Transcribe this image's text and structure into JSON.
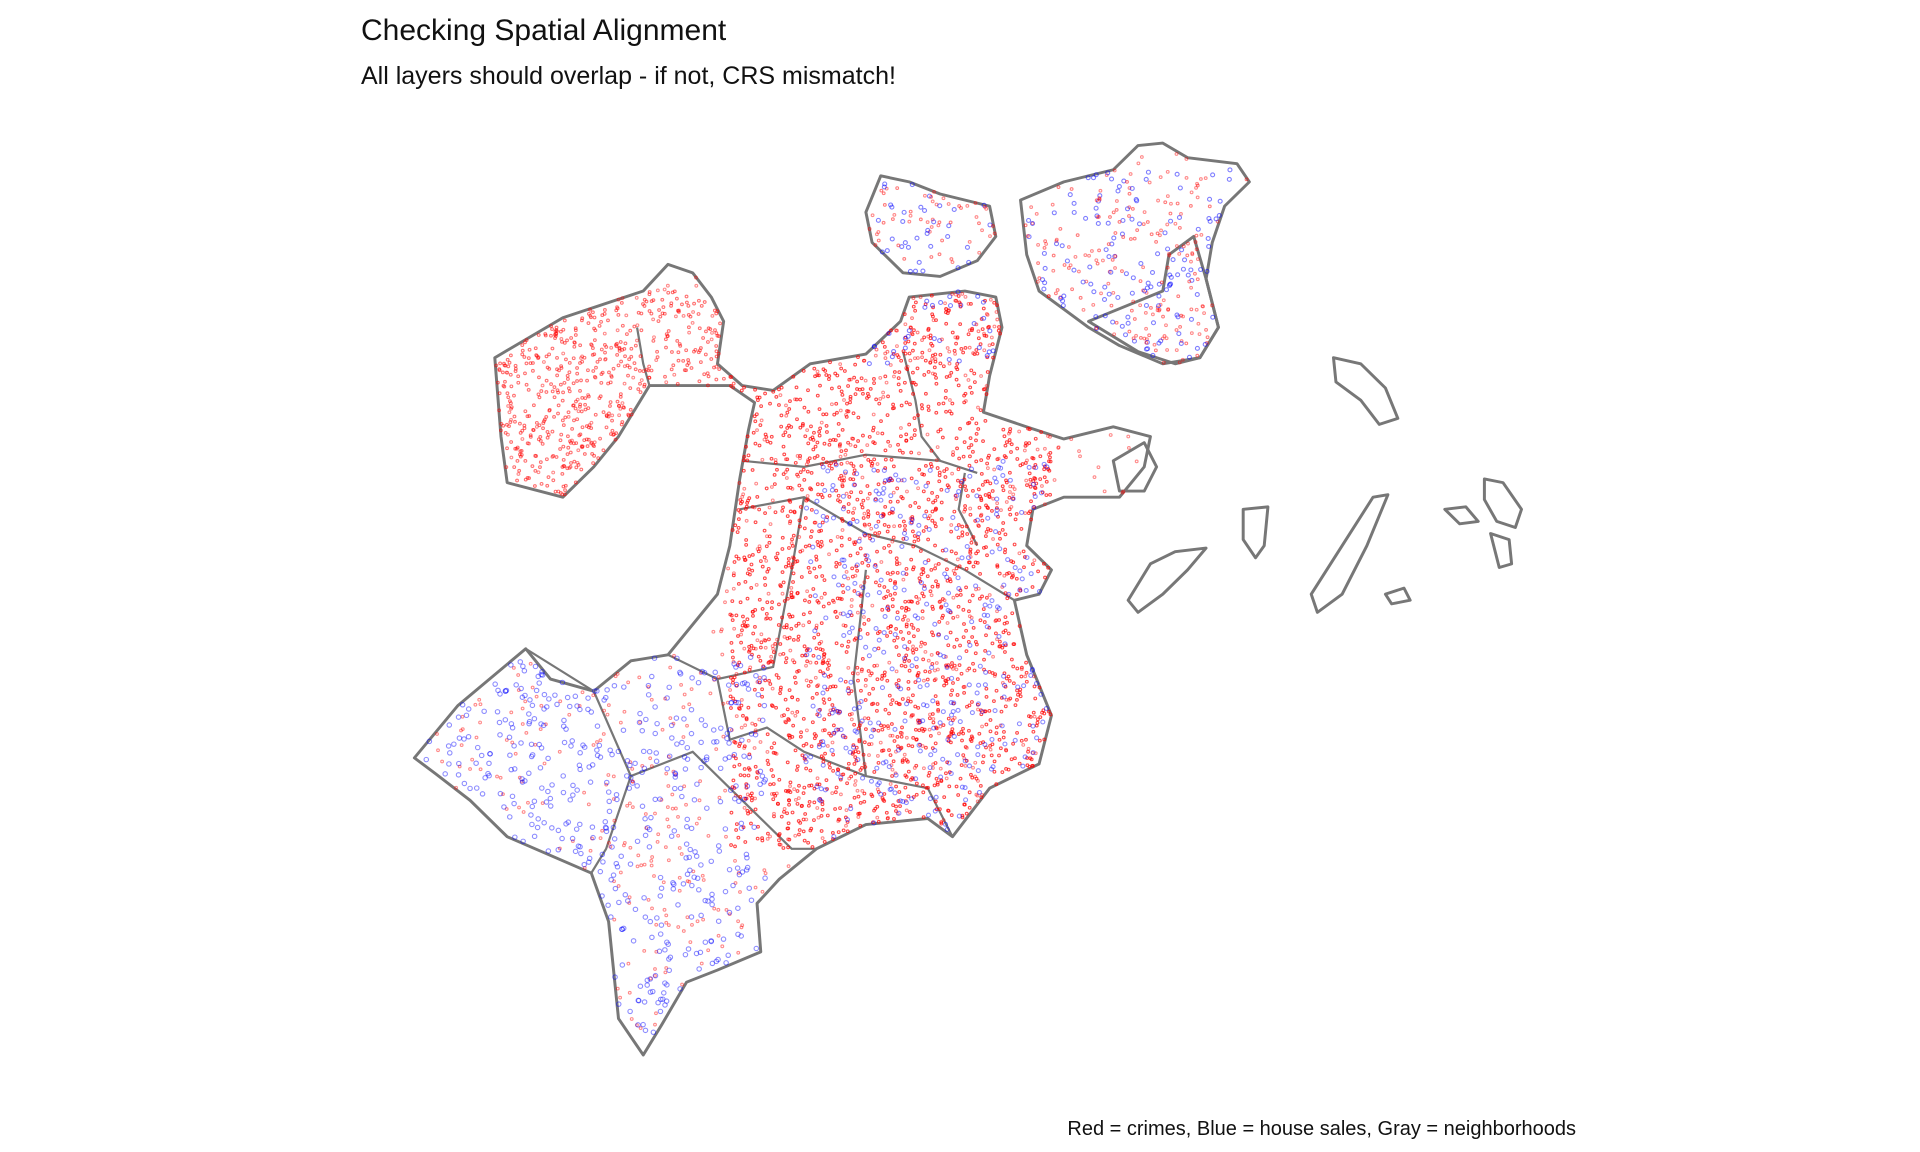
{
  "header": {
    "title": "Checking Spatial Alignment",
    "subtitle": "All layers should overlap - if not, CRS mismatch!"
  },
  "caption": "Red = crimes, Blue = house sales, Gray = neighborhoods"
}
